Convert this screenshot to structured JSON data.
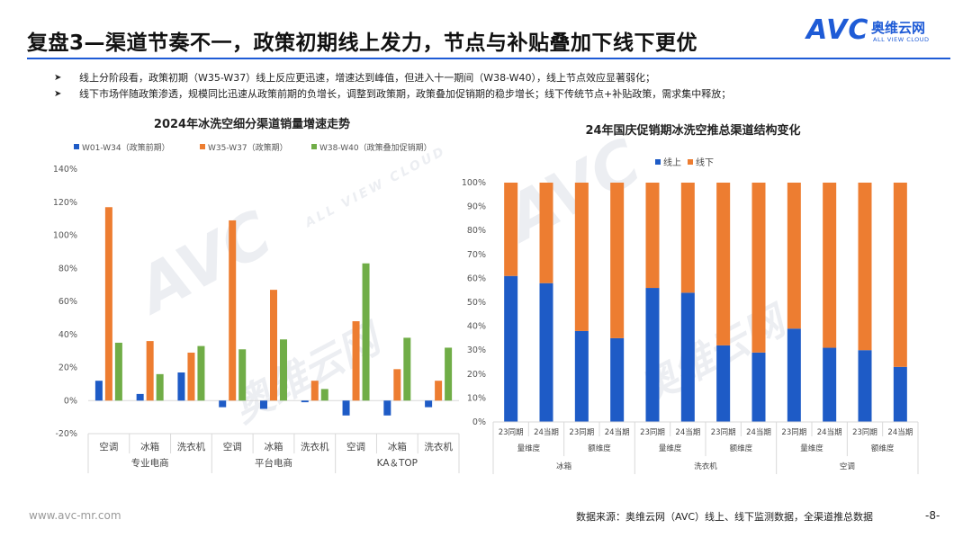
{
  "header": {
    "title": "复盘3—渠道节奏不一，政策初期线上发力，节点与补贴叠加下线下更优",
    "logo": {
      "mark": "AVC",
      "cn": "奥维云网",
      "en": "ALL VIEW CLOUD"
    }
  },
  "bullets": [
    {
      "marker": "➤",
      "text": "线上分阶段看，政策初期（W35-W37）线上反应更迅速，增速达到峰值，但进入十一期间（W38-W40），线上节点效应显著弱化；"
    },
    {
      "marker": "➤",
      "text": "线下市场伴随政策渗透，规模同比迅速从政策前期的负增长，调整到政策期，政策叠加促销期的稳步增长；线下传统节点+补贴政策，需求集中释放；"
    }
  ],
  "watermark": {
    "mark": "AVC",
    "cn": "奥维云网",
    "en": "ALL VIEW CLOUD"
  },
  "chart_data": [
    {
      "type": "bar",
      "title": "2024年冰洗空细分渠道销量增速走势",
      "categories": [
        "空调",
        "冰箱",
        "洗衣机",
        "空调",
        "冰箱",
        "洗衣机",
        "空调",
        "冰箱",
        "洗衣机"
      ],
      "groups": [
        {
          "label": "专业电商",
          "span": 3
        },
        {
          "label": "平台电商",
          "span": 3
        },
        {
          "label": "KA＆TOP",
          "span": 3
        }
      ],
      "series": [
        {
          "name": "W01-W34（政策前期）",
          "color": "#1e5bc6",
          "values": [
            12,
            4,
            17,
            -4,
            -5,
            -1,
            -9,
            -9,
            -4
          ]
        },
        {
          "name": "W35-W37（政策期）",
          "color": "#ed7d31",
          "values": [
            117,
            36,
            29,
            109,
            67,
            12,
            48,
            19,
            12
          ]
        },
        {
          "name": "W38-W40（政策叠加促销期）",
          "color": "#70ad47",
          "values": [
            35,
            16,
            33,
            31,
            37,
            7,
            83,
            38,
            32
          ]
        }
      ],
      "ylim": [
        -20,
        140
      ],
      "yticks": [
        "-20%",
        "0%",
        "20%",
        "40%",
        "60%",
        "80%",
        "100%",
        "120%",
        "140%"
      ],
      "legend": "top"
    },
    {
      "type": "bar",
      "stacked": true,
      "title": "24年国庆促销期冰洗空推总渠道结构变化",
      "categories": [
        "23同期",
        "24当期",
        "23同期",
        "24当期",
        "23同期",
        "24当期",
        "23同期",
        "24当期",
        "23同期",
        "24当期",
        "23同期",
        "24当期"
      ],
      "sub_groups": [
        {
          "label": "量维度",
          "span": 2
        },
        {
          "label": "额维度",
          "span": 2
        },
        {
          "label": "量维度",
          "span": 2
        },
        {
          "label": "额维度",
          "span": 2
        },
        {
          "label": "量维度",
          "span": 2
        },
        {
          "label": "额维度",
          "span": 2
        }
      ],
      "groups": [
        {
          "label": "冰箱",
          "span": 4
        },
        {
          "label": "洗衣机",
          "span": 4
        },
        {
          "label": "空调",
          "span": 4
        }
      ],
      "series": [
        {
          "name": "线上",
          "color": "#1e5bc6",
          "values": [
            61,
            58,
            38,
            35,
            56,
            54,
            32,
            29,
            39,
            31,
            30,
            23
          ]
        },
        {
          "name": "线下",
          "color": "#ed7d31",
          "values": [
            39,
            42,
            62,
            65,
            44,
            46,
            68,
            71,
            61,
            69,
            70,
            77
          ]
        }
      ],
      "ylim": [
        0,
        100
      ],
      "yticks": [
        "0%",
        "10%",
        "20%",
        "30%",
        "40%",
        "50%",
        "60%",
        "70%",
        "80%",
        "90%",
        "100%"
      ],
      "legend": "top-left"
    }
  ],
  "footer": {
    "url": "www.avc-mr.com",
    "source": "数据来源：奥维云网（AVC）线上、线下监测数据，全渠道推总数据",
    "page": "-8-"
  }
}
